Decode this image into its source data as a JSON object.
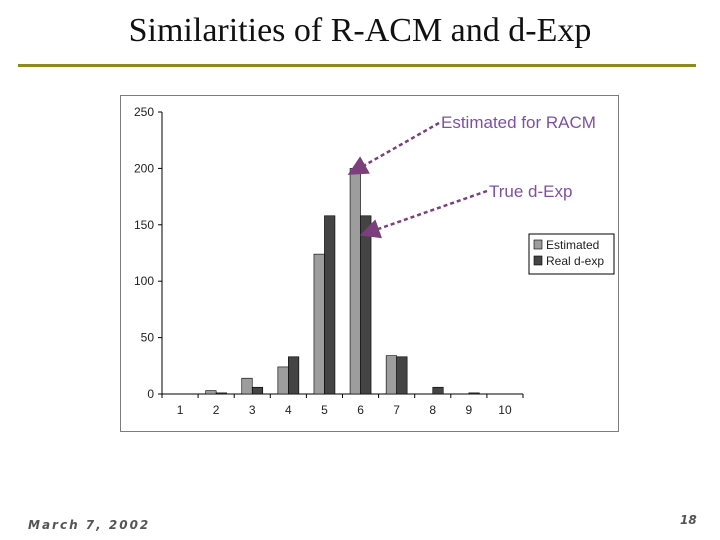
{
  "slide": {
    "title": "Similarities of R-ACM and d-Exp",
    "footer_date": "March 7, 2002",
    "page_number": "18"
  },
  "colors": {
    "rule": "#8c8c1e",
    "estimated": "#9d9d9d",
    "real": "#444444",
    "annotation": "#7b3f7e",
    "annotation_text": "#7f4fa6"
  },
  "chart_data": {
    "type": "bar",
    "categories": [
      "1",
      "2",
      "3",
      "4",
      "5",
      "6",
      "7",
      "8",
      "9",
      "10"
    ],
    "series": [
      {
        "name": "Estimated",
        "values": [
          0,
          3,
          14,
          24,
          124,
          200,
          34,
          0,
          0,
          0
        ]
      },
      {
        "name": "Real d-exp",
        "values": [
          0,
          1,
          6,
          33,
          158,
          158,
          33,
          6,
          1,
          0
        ]
      }
    ],
    "ylim": [
      0,
      250
    ],
    "yticks": [
      0,
      50,
      100,
      150,
      200,
      250
    ],
    "xlabel": "",
    "ylabel": "",
    "legend_position": "right",
    "grid": false,
    "annotations": [
      {
        "text": "Estimated for RACM",
        "category": "6",
        "series": "Estimated"
      },
      {
        "text": "True d-Exp",
        "category": "6",
        "series": "Real d-exp"
      }
    ]
  }
}
